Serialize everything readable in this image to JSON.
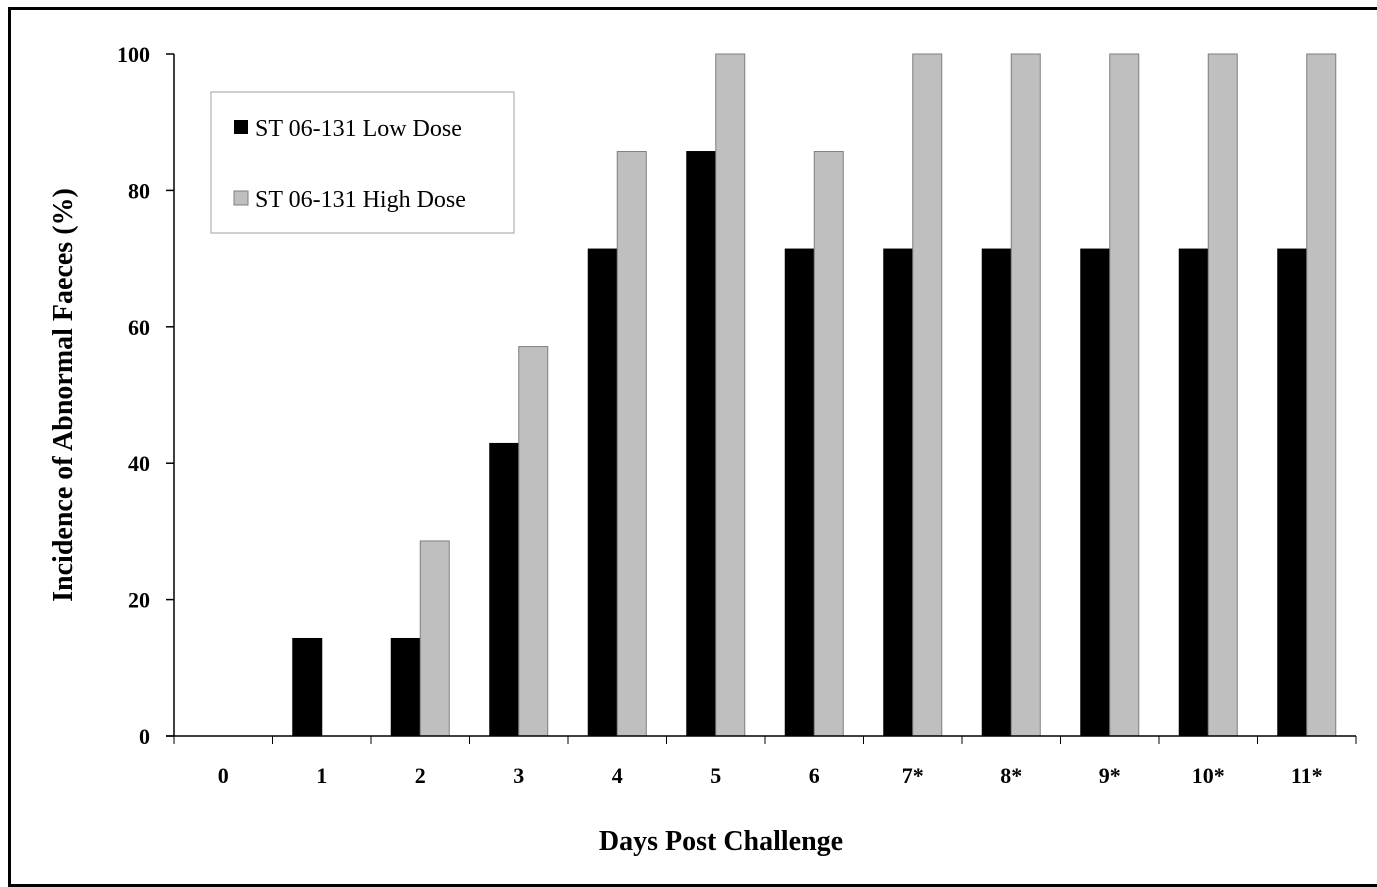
{
  "chart_data": {
    "type": "bar",
    "xlabel": "Days Post Challenge",
    "ylabel": "Incidence of Abnormal Faeces (%)",
    "ylim": [
      0,
      100
    ],
    "yticks": [
      0,
      20,
      40,
      60,
      80,
      100
    ],
    "grid": false,
    "legend_position": "top-left",
    "categories": [
      "0",
      "1",
      "2",
      "3",
      "4",
      "5",
      "6",
      "7*",
      "8*",
      "9*",
      "10*",
      "11*"
    ],
    "series": [
      {
        "name": "ST 06-131 Low Dose",
        "color": "#000000",
        "values": [
          0,
          14.3,
          14.3,
          42.9,
          71.4,
          85.7,
          71.4,
          71.4,
          71.4,
          71.4,
          71.4,
          71.4
        ]
      },
      {
        "name": "ST 06-131 High Dose",
        "color": "#bfbfbf",
        "values": [
          0,
          0,
          28.6,
          57.1,
          85.7,
          100,
          85.7,
          100,
          100,
          100,
          100,
          100
        ]
      }
    ]
  }
}
